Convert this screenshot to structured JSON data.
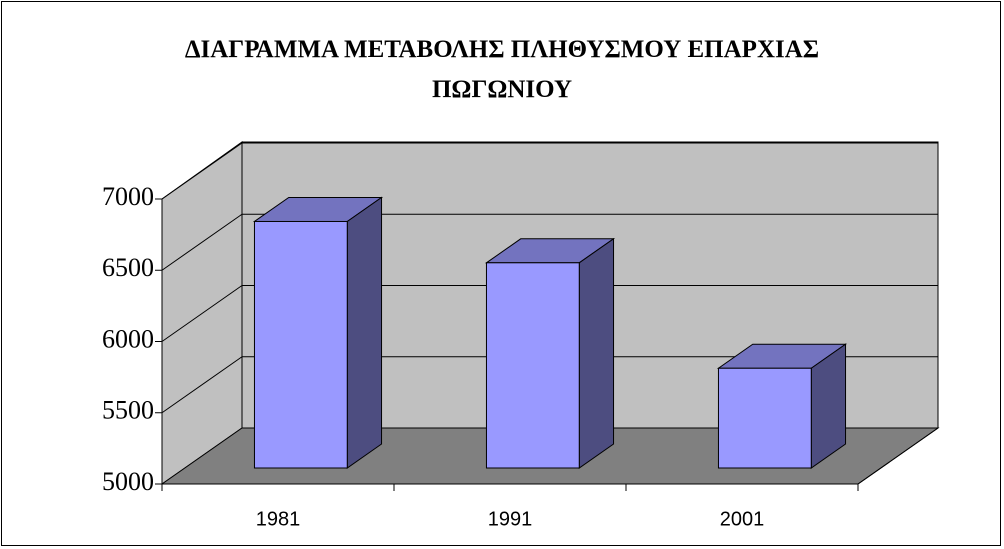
{
  "chart_data": {
    "type": "bar3d",
    "title": "ΔΙΑΓΡΑΜΜΑ ΜΕΤΑΒΟΛΗΣ ΠΛΗΘΥΣΜΟΥ ΕΠΑΡΧΙΑΣ ΠΩΓΩΝΙΟΥ",
    "categories": [
      "1981",
      "1991",
      "2001"
    ],
    "values": [
      6730,
      6440,
      5700
    ],
    "color": "#9999ff",
    "ylim": [
      5000,
      7000
    ],
    "yticks": [
      5000,
      5500,
      6000,
      6500,
      7000
    ],
    "grid": true
  }
}
